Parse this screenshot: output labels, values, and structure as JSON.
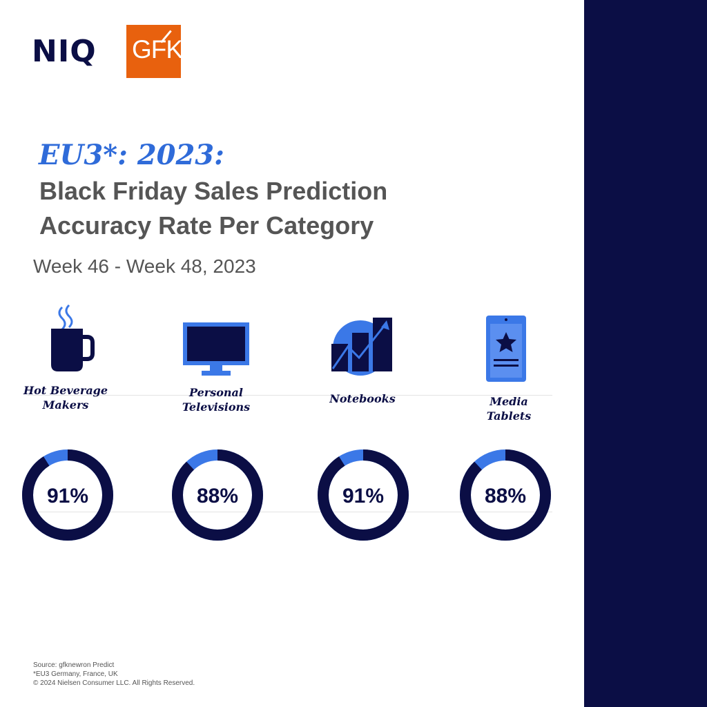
{
  "logos": {
    "niq": "NIQ",
    "gfk": "GFK"
  },
  "headline": "EU3*: 2023:",
  "title_line1": "Black Friday Sales Prediction",
  "title_line2": "Accuracy Rate Per Category",
  "subtitle": "Week 46 - Week 48, 2023",
  "colors": {
    "navy": "#0b0e45",
    "accent": "#3b78e7",
    "gfk_orange": "#e8610e",
    "title_gray": "#555555"
  },
  "categories": [
    {
      "line1": "Hot Beverage",
      "line2": "Makers",
      "icon": "coffee-mug-icon"
    },
    {
      "line1": "Personal",
      "line2": "Televisions",
      "icon": "television-icon"
    },
    {
      "line1": "Notebooks",
      "line2": "",
      "icon": "growth-chart-icon"
    },
    {
      "line1": "Media",
      "line2": "Tablets",
      "icon": "tablet-star-icon"
    }
  ],
  "chart_data": {
    "type": "pie",
    "categories": [
      "Hot Beverage Makers",
      "Personal Televisions",
      "Notebooks",
      "Media Tablets"
    ],
    "values": [
      91,
      88,
      91,
      88
    ],
    "labels": [
      "91%",
      "88%",
      "91%",
      "88%"
    ],
    "unit": "%"
  },
  "footer": {
    "source": "Source: gfknewron Predict",
    "note": "*EU3 Germany, France, UK",
    "copyright": "© 2024 Nielsen Consumer LLC. All Rights Reserved."
  }
}
